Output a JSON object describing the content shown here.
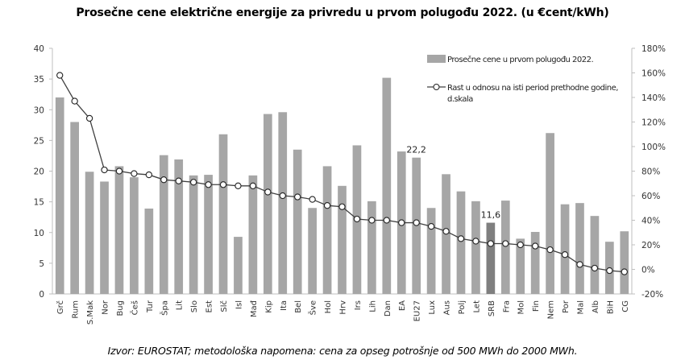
{
  "chart_data": {
    "type": "bar+line",
    "title": "Prosečne cene električne energije za privredu u prvom polugođu 2022. (u €cent/kWh)",
    "source_note": "Izvor: EUROSTAT; metodološka napomena: cena za opseg potrošnje od 500 MWh do 2000 MWh.",
    "categories": [
      "Grč",
      "Rum",
      "S.Mak",
      "Nor",
      "Bug",
      "Češ",
      "Tur",
      "Špa",
      "Lit",
      "Slo",
      "Est",
      "Slč",
      "Isl",
      "Mađ",
      "Kip",
      "Ita",
      "Bel",
      "Šve",
      "Hol",
      "Hrv",
      "Irs",
      "Lih",
      "Dan",
      "EA",
      "EU27",
      "Lux",
      "Aus",
      "Polj",
      "Let",
      "SRB",
      "Fra",
      "Mol",
      "Fin",
      "Nem",
      "Por",
      "Mal",
      "Alb",
      "BiH",
      "CG"
    ],
    "series": [
      {
        "name": "Prosečne cene u prvom polugođu 2022.",
        "type": "bar",
        "axis": "left",
        "color": "#a6a6a6",
        "highlight": {
          "category": "SRB",
          "color": "#7f7f7f"
        },
        "values": [
          32.0,
          28.0,
          19.9,
          18.3,
          20.8,
          19.0,
          13.9,
          22.6,
          21.9,
          19.3,
          19.4,
          26.0,
          9.3,
          19.3,
          29.3,
          29.6,
          23.5,
          14.0,
          20.8,
          17.6,
          24.2,
          15.1,
          35.2,
          23.2,
          22.2,
          14.0,
          19.5,
          16.7,
          15.1,
          11.6,
          15.2,
          9.0,
          10.1,
          26.2,
          14.6,
          14.8,
          12.7,
          8.5,
          10.2
        ]
      },
      {
        "name": "Rast u odnosu na isti period prethodne godine, d.skala",
        "type": "line",
        "axis": "right",
        "unit": "%",
        "color": "#404040",
        "values": [
          158,
          137,
          123,
          81,
          80,
          78,
          77,
          73,
          72,
          71,
          69,
          69,
          68,
          68,
          63,
          60,
          59,
          57,
          52,
          51,
          41,
          40,
          40,
          38,
          38,
          35,
          31,
          25,
          23,
          21,
          21,
          20,
          19,
          16,
          12,
          4,
          1,
          -1,
          -2
        ]
      }
    ],
    "data_labels": [
      {
        "category": "EU27",
        "text": "22,2"
      },
      {
        "category": "SRB",
        "text": "11,6"
      }
    ],
    "y_left": {
      "range": [
        0,
        40
      ],
      "ticks": [
        "0",
        "5",
        "10",
        "15",
        "20",
        "25",
        "30",
        "35",
        "40"
      ]
    },
    "y_right": {
      "range": [
        -20,
        180
      ],
      "ticks": [
        "-20%",
        "0%",
        "20%",
        "40%",
        "60%",
        "80%",
        "100%",
        "120%",
        "140%",
        "160%",
        "180%"
      ]
    },
    "legend": {
      "position": "top-right",
      "items": [
        {
          "label": "Prosečne cene u prvom polugođu 2022.",
          "kind": "bar"
        },
        {
          "label_line1": "Rast u odnosu na isti period prethodne godine,",
          "label_line2": "d.skala",
          "kind": "line"
        }
      ]
    },
    "grid": false
  }
}
